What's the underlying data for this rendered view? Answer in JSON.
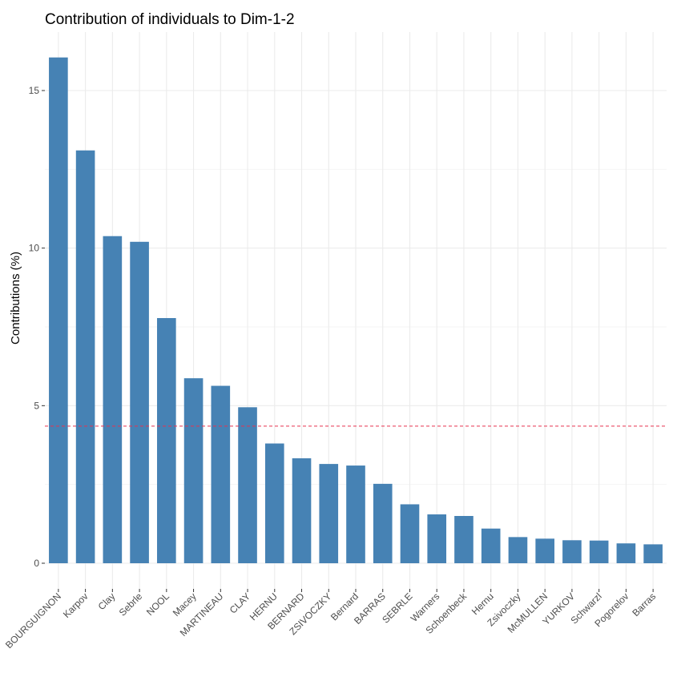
{
  "chart_data": {
    "type": "bar",
    "title": "Contribution of individuals to Dim-1-2",
    "xlabel": "",
    "ylabel": "Contributions (%)",
    "ylim": [
      0,
      16.5
    ],
    "yticks": [
      0,
      5,
      10,
      15
    ],
    "ytick_labels": [
      "0",
      "5",
      "10",
      "15"
    ],
    "reference_line": 4.35,
    "bar_color": "#4682b4",
    "reference_line_color": "#e8334f",
    "categories": [
      "BOURGUIGNON",
      "Karpov",
      "Clay",
      "Sebrle",
      "NOOL",
      "Macey",
      "MARTINEAU",
      "CLAY",
      "HERNU",
      "BERNARD",
      "ZSIVOCZKY",
      "Bernard",
      "BARRAS",
      "SEBRLE",
      "Warners",
      "Schoenbeck",
      "Hernu",
      "Zsivoczky",
      "McMULLEN",
      "YURKOV",
      "Schwarzl",
      "Pogorelov",
      "Barras"
    ],
    "values": [
      16.05,
      13.1,
      10.38,
      10.2,
      7.78,
      5.87,
      5.63,
      4.95,
      3.8,
      3.33,
      3.15,
      3.1,
      2.52,
      1.87,
      1.55,
      1.5,
      1.1,
      0.83,
      0.78,
      0.73,
      0.72,
      0.63,
      0.6
    ]
  }
}
